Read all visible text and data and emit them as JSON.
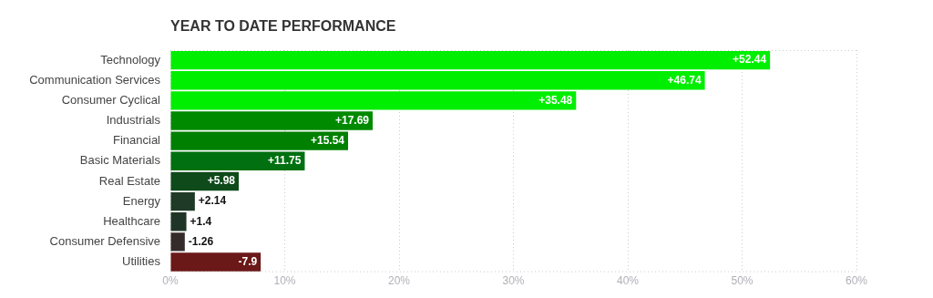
{
  "chart_data": {
    "type": "bar",
    "orientation": "horizontal",
    "title": "YEAR TO DATE PERFORMANCE",
    "categories": [
      "Technology",
      "Communication Services",
      "Consumer Cyclical",
      "Industrials",
      "Financial",
      "Basic Materials",
      "Real Estate",
      "Energy",
      "Healthcare",
      "Consumer Defensive",
      "Utilities"
    ],
    "values": [
      52.44,
      46.74,
      35.48,
      17.69,
      15.54,
      11.75,
      5.98,
      2.14,
      1.4,
      -1.26,
      -7.9
    ],
    "base": [
      0,
      0,
      0,
      0,
      0,
      0,
      0,
      0,
      0,
      1.26,
      7.9
    ],
    "value_labels": [
      "+52.44",
      "+46.74",
      "+35.48",
      "+17.69",
      "+15.54",
      "+11.75",
      "+5.98",
      "+2.14",
      "+1.4",
      "-1.26",
      "-7.9"
    ],
    "colors": [
      "#00ee00",
      "#00ee00",
      "#00ee00",
      "#008a00",
      "#008000",
      "#007010",
      "#0f4a1a",
      "#1f3a26",
      "#203528",
      "#352b2b",
      "#6b1818"
    ],
    "xlim": [
      0,
      60
    ],
    "xticks": [
      {
        "value": 0,
        "label": "0%"
      },
      {
        "value": 10,
        "label": "10%"
      },
      {
        "value": 20,
        "label": "20%"
      },
      {
        "value": 30,
        "label": "30%"
      },
      {
        "value": 40,
        "label": "40%"
      },
      {
        "value": 50,
        "label": "50%"
      },
      {
        "value": 60,
        "label": "60%"
      }
    ],
    "grid": "x"
  }
}
